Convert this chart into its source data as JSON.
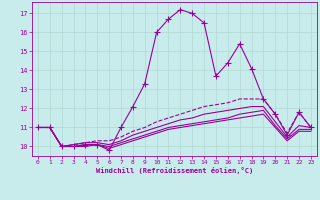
{
  "xlabel": "Windchill (Refroidissement éolien,°C)",
  "xlim": [
    -0.5,
    23.5
  ],
  "ylim": [
    9.5,
    17.6
  ],
  "yticks": [
    10,
    11,
    12,
    13,
    14,
    15,
    16,
    17
  ],
  "xticks": [
    0,
    1,
    2,
    3,
    4,
    5,
    6,
    7,
    8,
    9,
    10,
    11,
    12,
    13,
    14,
    15,
    16,
    17,
    18,
    19,
    20,
    21,
    22,
    23
  ],
  "background_color": "#c8ecec",
  "grid_color": "#b0d8d0",
  "line_color": "#990099",
  "lines": [
    {
      "x": [
        0,
        1,
        2,
        3,
        4,
        5,
        6,
        7,
        8,
        9,
        10,
        11,
        12,
        13,
        14,
        15,
        16,
        17,
        18,
        19,
        20,
        21,
        22,
        23
      ],
      "y": [
        11,
        11,
        10,
        10,
        10.1,
        10.1,
        9.8,
        11.0,
        12.1,
        13.3,
        16.0,
        16.7,
        17.2,
        17.0,
        16.5,
        13.7,
        14.4,
        15.4,
        14.1,
        12.5,
        11.7,
        10.6,
        11.8,
        11.0
      ],
      "style": "-",
      "marker": "+",
      "markersize": 4,
      "linewidth": 0.8
    },
    {
      "x": [
        0,
        1,
        2,
        3,
        4,
        5,
        6,
        7,
        8,
        9,
        10,
        11,
        12,
        13,
        14,
        15,
        16,
        17,
        18,
        19,
        20,
        21,
        22,
        23
      ],
      "y": [
        11.0,
        11.0,
        10.0,
        10.1,
        10.2,
        10.3,
        10.3,
        10.5,
        10.8,
        11.0,
        11.3,
        11.5,
        11.7,
        11.9,
        12.1,
        12.2,
        12.3,
        12.5,
        12.5,
        12.5,
        11.7,
        10.7,
        11.8,
        11.0
      ],
      "style": "--",
      "marker": null,
      "markersize": 0,
      "linewidth": 0.8
    },
    {
      "x": [
        0,
        1,
        2,
        3,
        4,
        5,
        6,
        7,
        8,
        9,
        10,
        11,
        12,
        13,
        14,
        15,
        16,
        17,
        18,
        19,
        20,
        21,
        22,
        23
      ],
      "y": [
        11.0,
        11.0,
        10.0,
        10.1,
        10.2,
        10.2,
        10.1,
        10.3,
        10.6,
        10.8,
        11.0,
        11.2,
        11.4,
        11.5,
        11.7,
        11.8,
        11.9,
        12.0,
        12.1,
        12.1,
        11.3,
        10.5,
        11.1,
        11.0
      ],
      "style": "-",
      "marker": null,
      "markersize": 0,
      "linewidth": 0.8
    },
    {
      "x": [
        0,
        1,
        2,
        3,
        4,
        5,
        6,
        7,
        8,
        9,
        10,
        11,
        12,
        13,
        14,
        15,
        16,
        17,
        18,
        19,
        20,
        21,
        22,
        23
      ],
      "y": [
        11.0,
        11.0,
        10.0,
        10.0,
        10.1,
        10.1,
        10.0,
        10.2,
        10.4,
        10.6,
        10.8,
        11.0,
        11.1,
        11.2,
        11.3,
        11.4,
        11.5,
        11.7,
        11.8,
        11.9,
        11.1,
        10.4,
        10.9,
        10.9
      ],
      "style": "-",
      "marker": null,
      "markersize": 0,
      "linewidth": 0.8
    },
    {
      "x": [
        0,
        1,
        2,
        3,
        4,
        5,
        6,
        7,
        8,
        9,
        10,
        11,
        12,
        13,
        14,
        15,
        16,
        17,
        18,
        19,
        20,
        21,
        22,
        23
      ],
      "y": [
        11.0,
        11.0,
        10.0,
        10.0,
        10.0,
        10.1,
        9.9,
        10.1,
        10.3,
        10.5,
        10.7,
        10.9,
        11.0,
        11.1,
        11.2,
        11.3,
        11.4,
        11.5,
        11.6,
        11.7,
        11.0,
        10.3,
        10.8,
        10.8
      ],
      "style": "-",
      "marker": null,
      "markersize": 0,
      "linewidth": 0.8
    }
  ]
}
